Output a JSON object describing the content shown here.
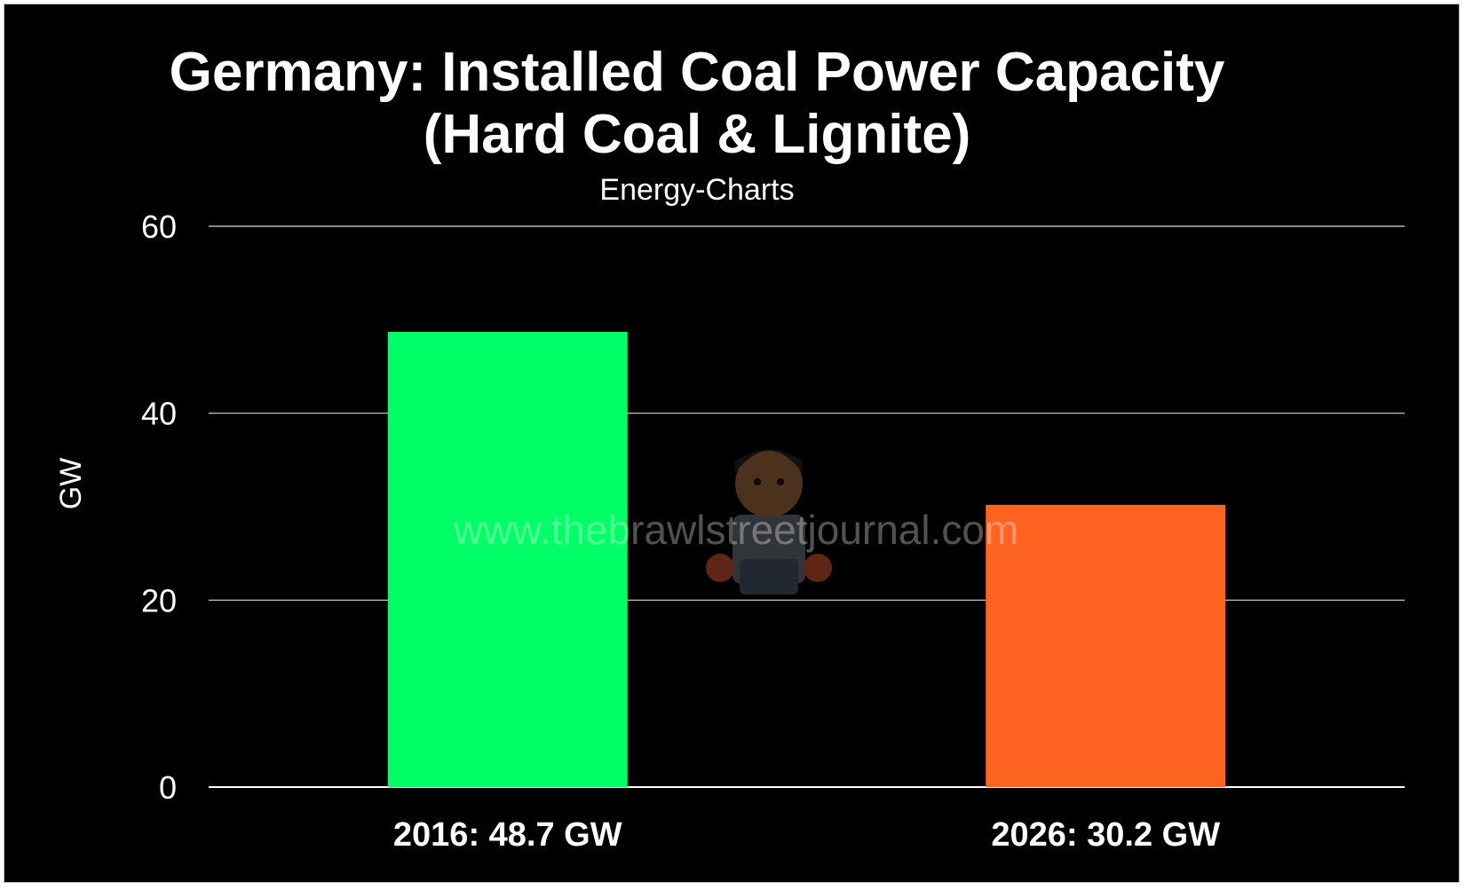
{
  "colors": {
    "background": "#000000",
    "text": "#ffffff",
    "bar_2016": "#00ff66",
    "bar_2026": "#ff6322",
    "gridline": "#d9d9d9"
  },
  "watermark": {
    "text": "www.thebrawlstreetjournal.com"
  },
  "chart_data": {
    "type": "bar",
    "title": "Germany: Installed Coal Power Capacity (Hard Coal & Lignite)",
    "title_lines": [
      "Germany: Installed Coal Power Capacity",
      "(Hard Coal & Lignite)"
    ],
    "subtitle": "Energy-Charts",
    "xlabel": "",
    "ylabel": "GW",
    "ylim": [
      0,
      60
    ],
    "yticks": [
      0,
      20,
      40,
      60
    ],
    "grid": true,
    "categories": [
      "2016: 48.7 GW",
      "2026: 30.2 GW"
    ],
    "values": [
      48.7,
      30.2
    ],
    "bar_colors": [
      "#00ff66",
      "#ff6322"
    ]
  }
}
